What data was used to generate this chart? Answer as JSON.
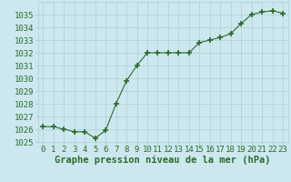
{
  "x": [
    0,
    1,
    2,
    3,
    4,
    5,
    6,
    7,
    8,
    9,
    10,
    11,
    12,
    13,
    14,
    15,
    16,
    17,
    18,
    19,
    20,
    21,
    22,
    23
  ],
  "y": [
    1026.2,
    1026.2,
    1026.0,
    1025.8,
    1025.8,
    1025.3,
    1025.9,
    1028.0,
    1029.8,
    1031.0,
    1032.0,
    1032.0,
    1032.0,
    1032.0,
    1032.0,
    1032.8,
    1033.0,
    1033.2,
    1033.5,
    1034.3,
    1035.0,
    1035.2,
    1035.3,
    1035.1
  ],
  "line_color": "#2d6a2d",
  "marker_color": "#2d6a2d",
  "bg_color": "#cce8ee",
  "grid_color": "#aecdd4",
  "xlabel": "Graphe pression niveau de la mer (hPa)",
  "ylim": [
    1025,
    1036
  ],
  "yticks": [
    1025,
    1026,
    1027,
    1028,
    1029,
    1030,
    1031,
    1032,
    1033,
    1034,
    1035
  ],
  "xlim": [
    -0.5,
    23.5
  ],
  "xticks": [
    0,
    1,
    2,
    3,
    4,
    5,
    6,
    7,
    8,
    9,
    10,
    11,
    12,
    13,
    14,
    15,
    16,
    17,
    18,
    19,
    20,
    21,
    22,
    23
  ],
  "tick_color": "#2d6a2d",
  "label_color": "#2d6a2d",
  "font_size": 6.5,
  "xlabel_fontsize": 7.5
}
